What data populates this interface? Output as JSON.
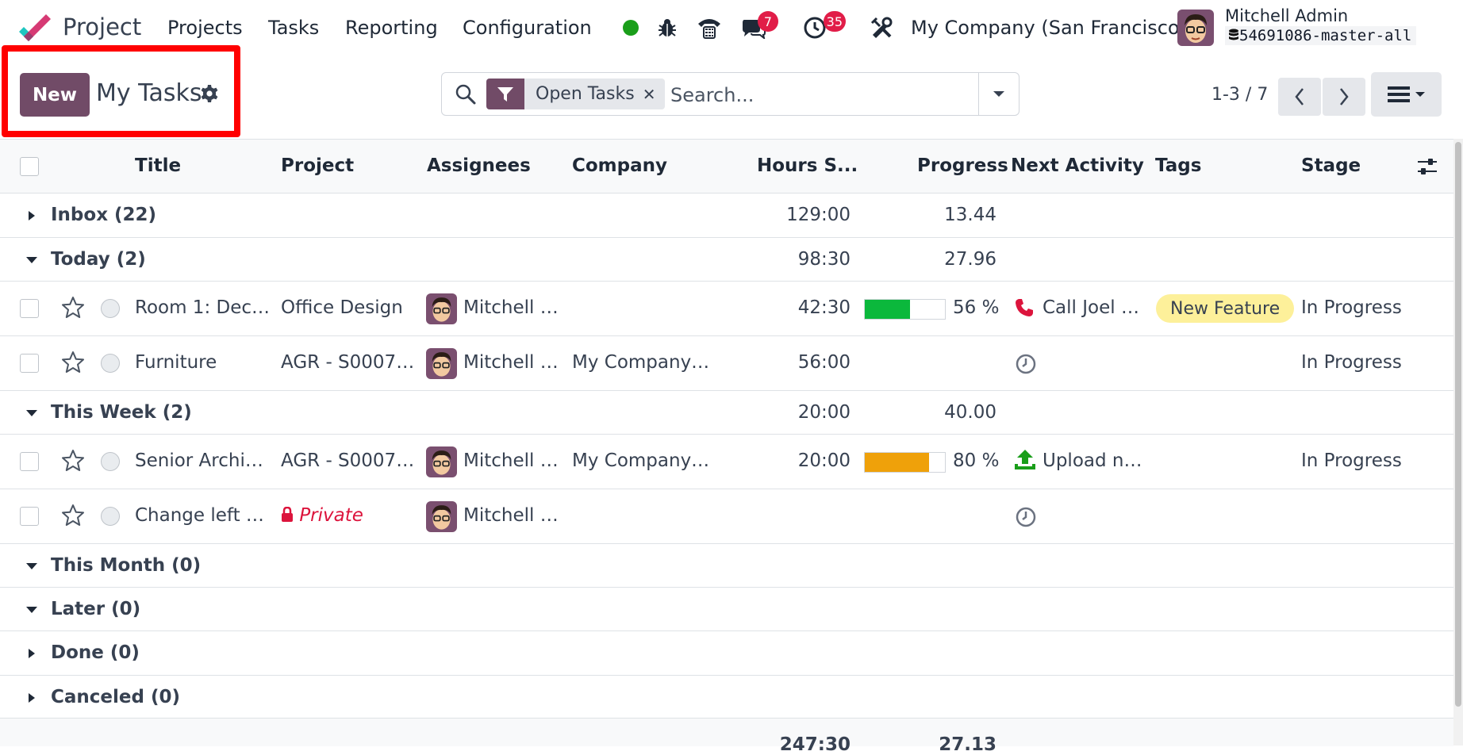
{
  "navbar": {
    "app_name": "Project",
    "menu": [
      "Projects",
      "Tasks",
      "Reporting",
      "Configuration"
    ],
    "chat_badge": "7",
    "activity_badge": "35",
    "company": "My Company (San Francisco)",
    "user_name": "Mitchell Admin",
    "database": "54691086-master-all",
    "status_color": "#1a9e1a"
  },
  "control_panel": {
    "new_label": "New",
    "title": "My Tasks",
    "facet_label": "Open Tasks",
    "search_placeholder": "Search...",
    "pager": "1-3 / 7"
  },
  "table": {
    "columns": [
      "Title",
      "Project",
      "Assignees",
      "Company",
      "Hours S...",
      "Progress",
      "Next Activity",
      "Tags",
      "Stage"
    ],
    "groups": [
      {
        "label": "Inbox (22)",
        "hours": "129:00",
        "progress": "13.44",
        "expanded": false
      },
      {
        "label": "Today (2)",
        "hours": "98:30",
        "progress": "27.96",
        "expanded": true
      },
      {
        "label": "This Week (2)",
        "hours": "20:00",
        "progress": "40.00",
        "expanded": true
      },
      {
        "label": "This Month (0)",
        "expanded": true
      },
      {
        "label": "Later (0)",
        "expanded": true
      },
      {
        "label": "Done (0)",
        "expanded": false
      },
      {
        "label": "Canceled (0)",
        "expanded": false
      }
    ],
    "rows": [
      {
        "title": "Room 1: Dec…",
        "project": "Office Design",
        "assignee": "Mitchell …",
        "company": "",
        "hours": "42:30",
        "progress": 56,
        "progress_label": "56 %",
        "progress_color": "#0bb83c",
        "activity": "Call Joel …",
        "activity_icon": "phone-icon",
        "tag": "New Feature",
        "stage": "In Progress"
      },
      {
        "title": "Furniture",
        "project": "AGR - S0007…",
        "assignee": "Mitchell …",
        "company": "My Company…",
        "hours": "56:00",
        "activity_icon": "clock-icon",
        "stage": "In Progress"
      },
      {
        "title": "Senior Archi…",
        "project": "AGR - S0007…",
        "assignee": "Mitchell …",
        "company": "My Company…",
        "hours": "20:00",
        "progress": 80,
        "progress_label": "80 %",
        "progress_color": "#efa10a",
        "activity": "Upload n…",
        "activity_icon": "upload-icon",
        "stage": "In Progress"
      },
      {
        "title": "Change left …",
        "project": "Private",
        "assignee": "Mitchell …",
        "company": "",
        "hours": "",
        "activity_icon": "clock-icon",
        "stage": ""
      }
    ],
    "totals": {
      "hours": "247:30",
      "progress": "27.13"
    }
  }
}
